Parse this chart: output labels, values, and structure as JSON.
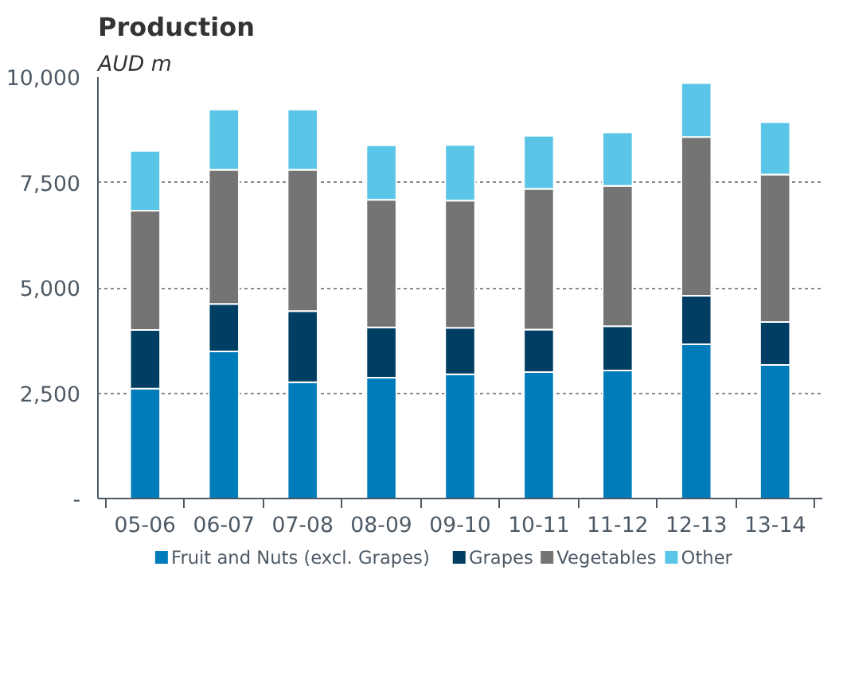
{
  "chart_data": {
    "type": "bar",
    "title": "Production",
    "ylabel": "AUD m",
    "stacked": true,
    "categories": [
      "05-06",
      "06-07",
      "07-08",
      "08-09",
      "09-10",
      "10-11",
      "11-12",
      "12-13",
      "13-14"
    ],
    "series": [
      {
        "name": "Fruit and Nuts (excl. Grapes)",
        "color": "#007cba",
        "values": [
          2610,
          3490,
          2760,
          2870,
          2950,
          3000,
          3040,
          3660,
          3170
        ]
      },
      {
        "name": "Grapes",
        "color": "#003f63",
        "values": [
          1390,
          1130,
          1690,
          1190,
          1100,
          1010,
          1050,
          1150,
          1020
        ]
      },
      {
        "name": "Vegetables",
        "color": "#747474",
        "values": [
          2830,
          3180,
          3350,
          3030,
          3020,
          3340,
          3330,
          3770,
          3500
        ]
      },
      {
        "name": "Other",
        "color": "#5bc5e8",
        "values": [
          1420,
          1430,
          1430,
          1290,
          1320,
          1260,
          1270,
          1280,
          1240
        ]
      }
    ],
    "ylim": [
      0,
      10000
    ],
    "yticks": [
      {
        "value": 0,
        "label": "-"
      },
      {
        "value": 2500,
        "label": "2,500"
      },
      {
        "value": 5000,
        "label": "5,000"
      },
      {
        "value": 7500,
        "label": "7,500"
      },
      {
        "value": 10000,
        "label": "10,000"
      }
    ],
    "grid": "y",
    "legend": "bottom"
  }
}
